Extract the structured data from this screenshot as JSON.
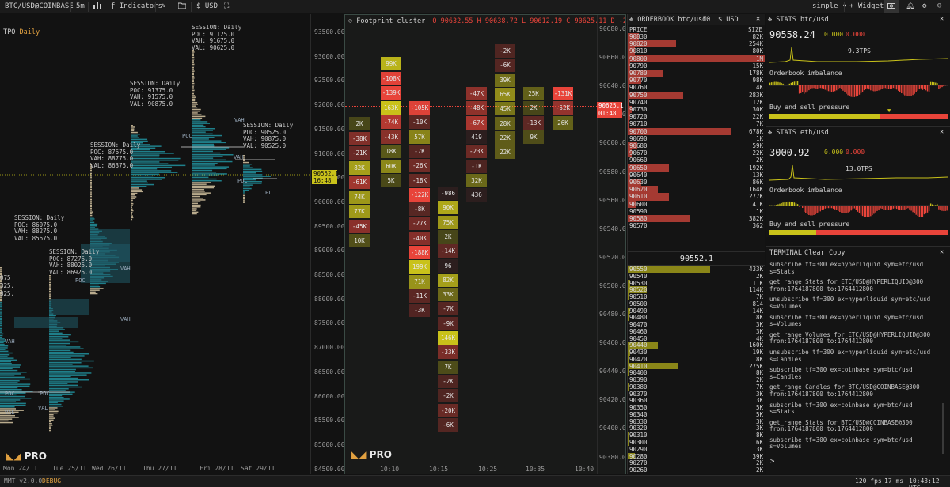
{
  "toolbar": {
    "symbol": "BTC/USD@COINBASE",
    "timeframe": "5m",
    "indicators_label": "Indicators",
    "currency": "USD",
    "layout": "simple",
    "widget_label": "Widget"
  },
  "tpo": {
    "title": "TPO",
    "period": "Daily",
    "price_ticks": [
      "93500.00",
      "93000.00",
      "92500.00",
      "92000.00",
      "91500.00",
      "91000.00",
      "90500.00",
      "90000.00",
      "89500.00",
      "89000.00",
      "88500.00",
      "88000.00",
      "87500.00",
      "87000.00",
      "86500.00",
      "86000.00",
      "85500.00",
      "85000.00",
      "84500.00"
    ],
    "current_price": "90552.1",
    "countdown": "16:48",
    "date_labels": [
      "Mon 24/11",
      "Tue 25/11",
      "Wed 26/11",
      "Thu 27/11",
      "Fri 28/11",
      "Sat 29/11"
    ],
    "sessions": [
      {
        "label": "SESSION: Daily\nPOC: 91125.0\nVAH: 91675.0\nVAL: 90625.0"
      },
      {
        "label": "SESSION: Daily\nPOC: 91375.0\nVAH: 91575.0\nVAL: 90875.0"
      },
      {
        "label": "SESSION: Daily\nPOC: 90525.0\nVAH: 90875.0\nVAL: 90525.0"
      },
      {
        "label": "SESSION: Daily\nPOC: 87675.0\nVAH: 88775.0\nVAL: 86375.0"
      },
      {
        "label": "SESSION: Daily\nPOC: 86075.0\nVAH: 88275.0\nVAL: 85675.0"
      },
      {
        "label": "SESSION: Daily\nPOC: 87275.0\nVAH: 88025.0\nVAL: 86925.0"
      }
    ],
    "cut_labels": [
      "075",
      "325.",
      "825."
    ],
    "markers": [
      "VAH",
      "POC",
      "VAL",
      "PL"
    ],
    "logo_text": "PRO"
  },
  "footprint": {
    "title": "Footprint cluster",
    "ohlc": "O 90632.55 H 90638.72 L 90612.19 C 90625.11 D -2",
    "price_ticks": [
      "90680.00",
      "90660.00",
      "90640.00",
      "90620.00",
      "90600.00",
      "90580.00",
      "90560.00",
      "90540.00",
      "90520.00",
      "90500.00",
      "90480.00",
      "90460.00",
      "90440.00",
      "90420.00",
      "90400.00",
      "90380.00"
    ],
    "current_price": "90625.1",
    "countdown": "01:48",
    "time_labels": [
      "10:10",
      "10:15",
      "10:25",
      "10:35",
      "10:40"
    ],
    "logo_text": "PRO",
    "columns": [
      [
        "2K",
        "-38K",
        "-21K",
        "82K",
        "-61K",
        "74K",
        "77K",
        "-45K",
        "10K"
      ],
      [
        "99K",
        "-108K",
        "-139K",
        "163K",
        "-74K",
        "-43K",
        "18K",
        "60K",
        "5K"
      ],
      [
        "-105K",
        "-10K",
        "57K",
        "-7K",
        "-26K",
        "-18K",
        "-122K",
        "-8K",
        "-27K",
        "-40K",
        "-188K",
        "199K",
        "71K",
        "-11K",
        "-3K"
      ],
      [
        "-986",
        "90K",
        "75K",
        "2K",
        "-14K",
        "96",
        "82K",
        "33K",
        "-7K",
        "-9K",
        "146K",
        "-33K",
        "7K",
        "-2K",
        "-2K",
        "-20K",
        "-6K"
      ],
      [
        "-47K",
        "-48K",
        "-67K",
        "419",
        "-23K",
        "-1K",
        "32K",
        "436"
      ],
      [
        "-2K",
        "-6K",
        "39K",
        "65K",
        "45K",
        "28K",
        "22K",
        "22K"
      ],
      [
        "25K",
        "2K",
        "-13K",
        "9K"
      ],
      [
        "-131K",
        "-52K",
        "26K"
      ]
    ]
  },
  "orderbook": {
    "title": "ORDERBOOK btc/usd",
    "depth": "10",
    "currency": "USD",
    "col_price": "PRICE",
    "col_size": "SIZE",
    "mid_price": "90552.1",
    "asks": [
      {
        "p": "90830",
        "s": "82K"
      },
      {
        "p": "90820",
        "s": "254K"
      },
      {
        "p": "90810",
        "s": "80K"
      },
      {
        "p": "90800",
        "s": "1M"
      },
      {
        "p": "90790",
        "s": "15K"
      },
      {
        "p": "90780",
        "s": "178K"
      },
      {
        "p": "90770",
        "s": "98K"
      },
      {
        "p": "90760",
        "s": "4K"
      },
      {
        "p": "90750",
        "s": "283K"
      },
      {
        "p": "90740",
        "s": "12K"
      },
      {
        "p": "90730",
        "s": "30K"
      },
      {
        "p": "90720",
        "s": "22K"
      },
      {
        "p": "90710",
        "s": "7K"
      },
      {
        "p": "90700",
        "s": "678K"
      },
      {
        "p": "90690",
        "s": "1K"
      },
      {
        "p": "90680",
        "s": "59K"
      },
      {
        "p": "90670",
        "s": "22K"
      },
      {
        "p": "90660",
        "s": "2K"
      },
      {
        "p": "90650",
        "s": "192K"
      },
      {
        "p": "90640",
        "s": "13K"
      },
      {
        "p": "90630",
        "s": "86K"
      },
      {
        "p": "90620",
        "s": "164K"
      },
      {
        "p": "90610",
        "s": "277K"
      },
      {
        "p": "90600",
        "s": "41K"
      },
      {
        "p": "90590",
        "s": "1K"
      },
      {
        "p": "90580",
        "s": "382K"
      },
      {
        "p": "90570",
        "s": "362"
      }
    ],
    "bids": [
      {
        "p": "90550",
        "s": "433K"
      },
      {
        "p": "90540",
        "s": "2K"
      },
      {
        "p": "90530",
        "s": "11K"
      },
      {
        "p": "90520",
        "s": "114K"
      },
      {
        "p": "90510",
        "s": "7K"
      },
      {
        "p": "90500",
        "s": "814"
      },
      {
        "p": "90490",
        "s": "14K"
      },
      {
        "p": "90480",
        "s": "8K"
      },
      {
        "p": "90470",
        "s": "3K"
      },
      {
        "p": "90460",
        "s": "3K"
      },
      {
        "p": "90450",
        "s": "4K"
      },
      {
        "p": "90440",
        "s": "160K"
      },
      {
        "p": "90430",
        "s": "19K"
      },
      {
        "p": "90420",
        "s": "8K"
      },
      {
        "p": "90410",
        "s": "275K"
      },
      {
        "p": "90400",
        "s": "8K"
      },
      {
        "p": "90390",
        "s": "2K"
      },
      {
        "p": "90380",
        "s": "7K"
      },
      {
        "p": "90370",
        "s": "3K"
      },
      {
        "p": "90360",
        "s": "3K"
      },
      {
        "p": "90350",
        "s": "5K"
      },
      {
        "p": "90340",
        "s": "5K"
      },
      {
        "p": "90330",
        "s": "3K"
      },
      {
        "p": "90320",
        "s": "3K"
      },
      {
        "p": "90310",
        "s": "8K"
      },
      {
        "p": "90300",
        "s": "6K"
      },
      {
        "p": "90290",
        "s": "3K"
      },
      {
        "p": "90280",
        "s": "39K"
      },
      {
        "p": "90270",
        "s": "2K"
      },
      {
        "p": "90260",
        "s": "2K"
      }
    ],
    "ask_fill": [
      0.08,
      0.35,
      0.05,
      1.0,
      0.02,
      0.25,
      0.1,
      0.01,
      0.4,
      0.01,
      0.03,
      0.02,
      0.01,
      0.75,
      0.0,
      0.07,
      0.03,
      0.0,
      0.3,
      0.02,
      0.1,
      0.22,
      0.3,
      0.06,
      0.0,
      0.45,
      0.0
    ],
    "bid_fill": [
      0.6,
      0.0,
      0.02,
      0.14,
      0.01,
      0.0,
      0.02,
      0.01,
      0.0,
      0.0,
      0.0,
      0.22,
      0.02,
      0.01,
      0.36,
      0.01,
      0.0,
      0.01,
      0.0,
      0.0,
      0.0,
      0.0,
      0.0,
      0.0,
      0.01,
      0.01,
      0.0,
      0.05,
      0.0,
      0.0
    ]
  },
  "stats_btc": {
    "title": "STATS btc/usd",
    "price": "90558.24",
    "change1": "0.000",
    "change2": "0.000",
    "tps": "9.3TPS",
    "imbalance_label": "Orderbook imbalance",
    "pressure_label": "Buy and sell pressure",
    "buy_pressure": 0.62
  },
  "stats_eth": {
    "title": "STATS eth/usd",
    "price": "3000.92",
    "change1": "0.000",
    "change2": "0.000",
    "tps": "13.0TPS",
    "imbalance_label": "Orderbook imbalance",
    "pressure_label": "Buy and sell pressure",
    "buy_pressure": 0.26
  },
  "terminal": {
    "title": "TERMINAL",
    "clear_label": "Clear",
    "copy_label": "Copy",
    "lines": [
      "subscribe tf=300 ex=hyperliquid sym=etc/usd s=Stats",
      "get_range Stats for ETC/USD@HYPERLIQUID@300\nfrom:1764187800 to:1764412800",
      "unsubscribe tf=300 ex=hyperliquid sym=etc/usd\ns=Volumes",
      "subscribe tf=300 ex=hyperliquid sym=etc/usd\ns=Volumes",
      "get_range Volumes for ETC/USD@HYPERLIQUID@300\nfrom:1764187800 to:1764412800",
      "unsubscribe tf=300 ex=hyperliquid sym=etc/usd\ns=Candles",
      "subscribe tf=300 ex=coinbase sym=btc/usd s=Candles",
      "get_range Candles for BTC/USD@COINBASE@300\nfrom:1764187800 to:1764412800",
      "subscribe tf=300 ex=coinbase sym=btc/usd s=Stats",
      "get_range Stats for BTC/USD@COINBASE@300\nfrom:1764187800 to:1764412800",
      "subscribe tf=300 ex=coinbase sym=btc/usd s=Volumes",
      "get_range Volumes for BTC/USD@COINBASE@300\nfrom:1764187800 to:1764412800"
    ],
    "prompt": ">"
  },
  "status": {
    "version": "MMT v2.0.0",
    "mode": "DEBUG",
    "fps": "120 fps",
    "latency": "17 ms",
    "clock": "10:43:12 UTC"
  },
  "colors": {
    "buy": "#c9c21a",
    "sell": "#e8443a",
    "teal": "#1f7f8a",
    "bg": "#121212"
  }
}
